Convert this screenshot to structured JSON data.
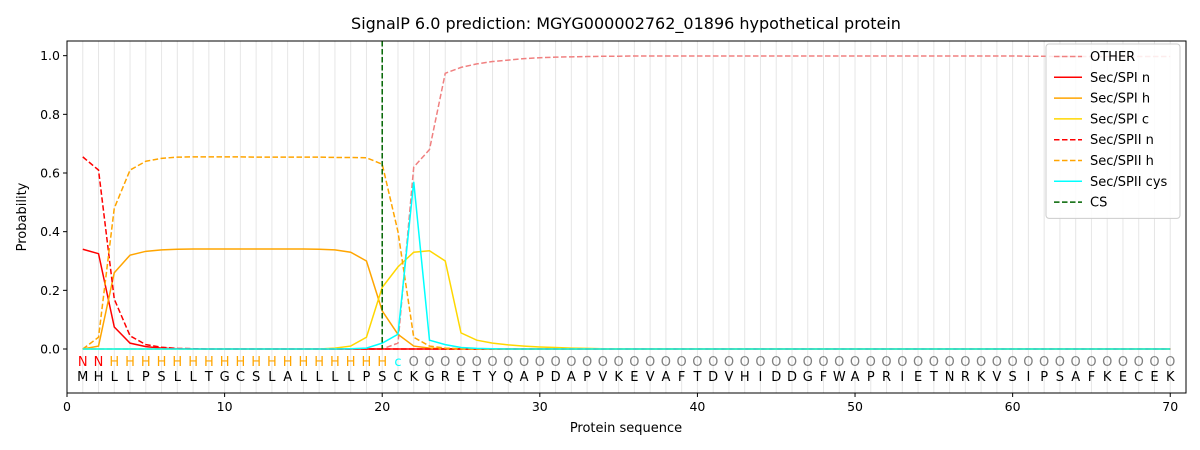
{
  "chart_data": {
    "type": "line",
    "title": "SignalP 6.0 prediction: MGYG000002762_01896 hypothetical protein",
    "xlabel": "Protein sequence",
    "ylabel": "Probability",
    "xlim": [
      0,
      71
    ],
    "ylim": [
      -0.15,
      1.05
    ],
    "xticks": [
      "0",
      "10",
      "20",
      "30",
      "40",
      "50",
      "60",
      "70"
    ],
    "yticks": [
      "0.0",
      "0.2",
      "0.4",
      "0.6",
      "0.8",
      "1.0"
    ],
    "grid": "vertical lines at each residue",
    "legend_position": "top-right",
    "sequence": [
      "M",
      "H",
      "L",
      "L",
      "P",
      "S",
      "L",
      "L",
      "T",
      "G",
      "C",
      "S",
      "L",
      "A",
      "L",
      "L",
      "L",
      "L",
      "P",
      "S",
      "C",
      "K",
      "G",
      "R",
      "E",
      "T",
      "Y",
      "Q",
      "A",
      "P",
      "D",
      "A",
      "P",
      "V",
      "K",
      "E",
      "V",
      "A",
      "F",
      "T",
      "D",
      "V",
      "H",
      "I",
      "D",
      "D",
      "G",
      "F",
      "W",
      "A",
      "P",
      "R",
      "I",
      "E",
      "T",
      "N",
      "R",
      "K",
      "V",
      "S",
      "I",
      "P",
      "S",
      "A",
      "F",
      "K",
      "E",
      "C",
      "E",
      "K"
    ],
    "region_labels": [
      "N",
      "N",
      "H",
      "H",
      "H",
      "H",
      "H",
      "H",
      "H",
      "H",
      "H",
      "H",
      "H",
      "H",
      "H",
      "H",
      "H",
      "H",
      "H",
      "H",
      "c",
      "O",
      "O",
      "O",
      "O",
      "O",
      "O",
      "O",
      "O",
      "O",
      "O",
      "O",
      "O",
      "O",
      "O",
      "O",
      "O",
      "O",
      "O",
      "O",
      "O",
      "O",
      "O",
      "O",
      "O",
      "O",
      "O",
      "O",
      "O",
      "O",
      "O",
      "O",
      "O",
      "O",
      "O",
      "O",
      "O",
      "O",
      "O",
      "O",
      "O",
      "O",
      "O",
      "O",
      "O",
      "O",
      "O",
      "O",
      "O",
      "O"
    ],
    "region_colors": {
      "N": "#ff0000",
      "H": "#ffa500",
      "c": "#00ffff",
      "O": "#808080"
    },
    "cleavage_site": 20,
    "series": [
      {
        "name": "OTHER",
        "color": "#f08080",
        "dash": true,
        "values": [
          0.0,
          0.0,
          0.0,
          0.0,
          0.0,
          0.0,
          0.0,
          0.0,
          0.0,
          0.0,
          0.0,
          0.0,
          0.0,
          0.0,
          0.0,
          0.0,
          0.0,
          0.0,
          0.0,
          0.0,
          0.02,
          0.62,
          0.68,
          0.94,
          0.96,
          0.972,
          0.98,
          0.985,
          0.99,
          0.993,
          0.995,
          0.996,
          0.997,
          0.998,
          0.998,
          0.999,
          0.999,
          0.999,
          0.999,
          0.999,
          0.999,
          0.999,
          0.999,
          0.999,
          0.999,
          0.999,
          0.999,
          0.999,
          0.999,
          0.999,
          0.999,
          0.999,
          0.999,
          0.999,
          0.999,
          0.999,
          0.999,
          0.999,
          0.999,
          0.999,
          0.998,
          0.998,
          0.997,
          0.997,
          0.997,
          0.997,
          0.997,
          0.997,
          0.997,
          0.997
        ]
      },
      {
        "name": "Sec/SPI n",
        "color": "#ff0000",
        "dash": false,
        "values": [
          0.34,
          0.325,
          0.075,
          0.02,
          0.008,
          0.003,
          0.001,
          0.0,
          0.0,
          0.0,
          0.0,
          0.0,
          0.0,
          0.0,
          0.0,
          0.0,
          0.0,
          0.0,
          0.0,
          0.0,
          0.0,
          0.0,
          0.0,
          0.0,
          0.0,
          0.0,
          0.0,
          0.0,
          0.0,
          0.0,
          0.0,
          0.0,
          0.0,
          0.0,
          0.0,
          0.0,
          0.0,
          0.0,
          0.0,
          0.0,
          0.0,
          0.0,
          0.0,
          0.0,
          0.0,
          0.0,
          0.0,
          0.0,
          0.0,
          0.0,
          0.0,
          0.0,
          0.0,
          0.0,
          0.0,
          0.0,
          0.0,
          0.0,
          0.0,
          0.0,
          0.0,
          0.0,
          0.0,
          0.0,
          0.0,
          0.0,
          0.0,
          0.0,
          0.0,
          0.0
        ]
      },
      {
        "name": "Sec/SPI h",
        "color": "#ffa500",
        "dash": false,
        "values": [
          0.0,
          0.01,
          0.26,
          0.32,
          0.333,
          0.338,
          0.34,
          0.341,
          0.341,
          0.341,
          0.341,
          0.341,
          0.341,
          0.341,
          0.341,
          0.34,
          0.338,
          0.33,
          0.3,
          0.13,
          0.05,
          0.01,
          0.003,
          0.001,
          0.0,
          0.0,
          0.0,
          0.0,
          0.0,
          0.0,
          0.0,
          0.0,
          0.0,
          0.0,
          0.0,
          0.0,
          0.0,
          0.0,
          0.0,
          0.0,
          0.0,
          0.0,
          0.0,
          0.0,
          0.0,
          0.0,
          0.0,
          0.0,
          0.0,
          0.0,
          0.0,
          0.0,
          0.0,
          0.0,
          0.0,
          0.0,
          0.0,
          0.0,
          0.0,
          0.0,
          0.0,
          0.0,
          0.0,
          0.0,
          0.0,
          0.0,
          0.0,
          0.0,
          0.0,
          0.0
        ]
      },
      {
        "name": "Sec/SPI c",
        "color": "#ffd700",
        "dash": false,
        "values": [
          0.0,
          0.0,
          0.0,
          0.0,
          0.0,
          0.0,
          0.0,
          0.0,
          0.0,
          0.0,
          0.0,
          0.0,
          0.0,
          0.0,
          0.0,
          0.0,
          0.003,
          0.01,
          0.04,
          0.21,
          0.28,
          0.33,
          0.335,
          0.3,
          0.055,
          0.03,
          0.02,
          0.014,
          0.01,
          0.007,
          0.005,
          0.003,
          0.002,
          0.001,
          0.001,
          0.0,
          0.0,
          0.0,
          0.0,
          0.0,
          0.0,
          0.0,
          0.0,
          0.0,
          0.0,
          0.0,
          0.0,
          0.0,
          0.0,
          0.0,
          0.0,
          0.0,
          0.0,
          0.0,
          0.0,
          0.0,
          0.0,
          0.0,
          0.0,
          0.0,
          0.0,
          0.0,
          0.0,
          0.0,
          0.0,
          0.0,
          0.0,
          0.0,
          0.0,
          0.0
        ]
      },
      {
        "name": "Sec/SPII n",
        "color": "#ff0000",
        "dash": true,
        "values": [
          0.655,
          0.61,
          0.17,
          0.045,
          0.015,
          0.006,
          0.002,
          0.001,
          0.0,
          0.0,
          0.0,
          0.0,
          0.0,
          0.0,
          0.0,
          0.0,
          0.0,
          0.0,
          0.0,
          0.0,
          0.0,
          0.0,
          0.0,
          0.0,
          0.0,
          0.0,
          0.0,
          0.0,
          0.0,
          0.0,
          0.0,
          0.0,
          0.0,
          0.0,
          0.0,
          0.0,
          0.0,
          0.0,
          0.0,
          0.0,
          0.0,
          0.0,
          0.0,
          0.0,
          0.0,
          0.0,
          0.0,
          0.0,
          0.0,
          0.0,
          0.0,
          0.0,
          0.0,
          0.0,
          0.0,
          0.0,
          0.0,
          0.0,
          0.0,
          0.0,
          0.0,
          0.0,
          0.0,
          0.0,
          0.0,
          0.0,
          0.0,
          0.0,
          0.0,
          0.0
        ]
      },
      {
        "name": "Sec/SPII h",
        "color": "#ffa500",
        "dash": true,
        "values": [
          0.0,
          0.04,
          0.48,
          0.61,
          0.64,
          0.65,
          0.654,
          0.655,
          0.655,
          0.655,
          0.655,
          0.654,
          0.654,
          0.654,
          0.654,
          0.654,
          0.653,
          0.653,
          0.652,
          0.63,
          0.4,
          0.04,
          0.01,
          0.003,
          0.001,
          0.0,
          0.0,
          0.0,
          0.0,
          0.0,
          0.0,
          0.0,
          0.0,
          0.0,
          0.0,
          0.0,
          0.0,
          0.0,
          0.0,
          0.0,
          0.0,
          0.0,
          0.0,
          0.0,
          0.0,
          0.0,
          0.0,
          0.0,
          0.0,
          0.0,
          0.0,
          0.0,
          0.0,
          0.0,
          0.0,
          0.0,
          0.0,
          0.0,
          0.0,
          0.0,
          0.0,
          0.0,
          0.0,
          0.0,
          0.0,
          0.0,
          0.0,
          0.0,
          0.0,
          0.0
        ]
      },
      {
        "name": "Sec/SPII cys",
        "color": "#00ffff",
        "dash": false,
        "values": [
          0.0,
          0.0,
          0.0,
          0.0,
          0.0,
          0.0,
          0.0,
          0.0,
          0.0,
          0.0,
          0.0,
          0.0,
          0.0,
          0.0,
          0.0,
          0.0,
          0.0,
          0.001,
          0.003,
          0.02,
          0.05,
          0.57,
          0.03,
          0.015,
          0.005,
          0.002,
          0.001,
          0.0,
          0.0,
          0.0,
          0.0,
          0.0,
          0.0,
          0.0,
          0.0,
          0.0,
          0.0,
          0.0,
          0.0,
          0.0,
          0.0,
          0.0,
          0.0,
          0.0,
          0.0,
          0.0,
          0.0,
          0.0,
          0.0,
          0.0,
          0.0,
          0.0,
          0.0,
          0.0,
          0.0,
          0.0,
          0.0,
          0.0,
          0.0,
          0.0,
          0.0,
          0.0,
          0.0,
          0.0,
          0.0,
          0.0,
          0.0,
          0.0,
          0.0,
          0.0
        ]
      }
    ],
    "cs_legend": {
      "name": "CS",
      "color": "#006400",
      "dash": true
    }
  }
}
